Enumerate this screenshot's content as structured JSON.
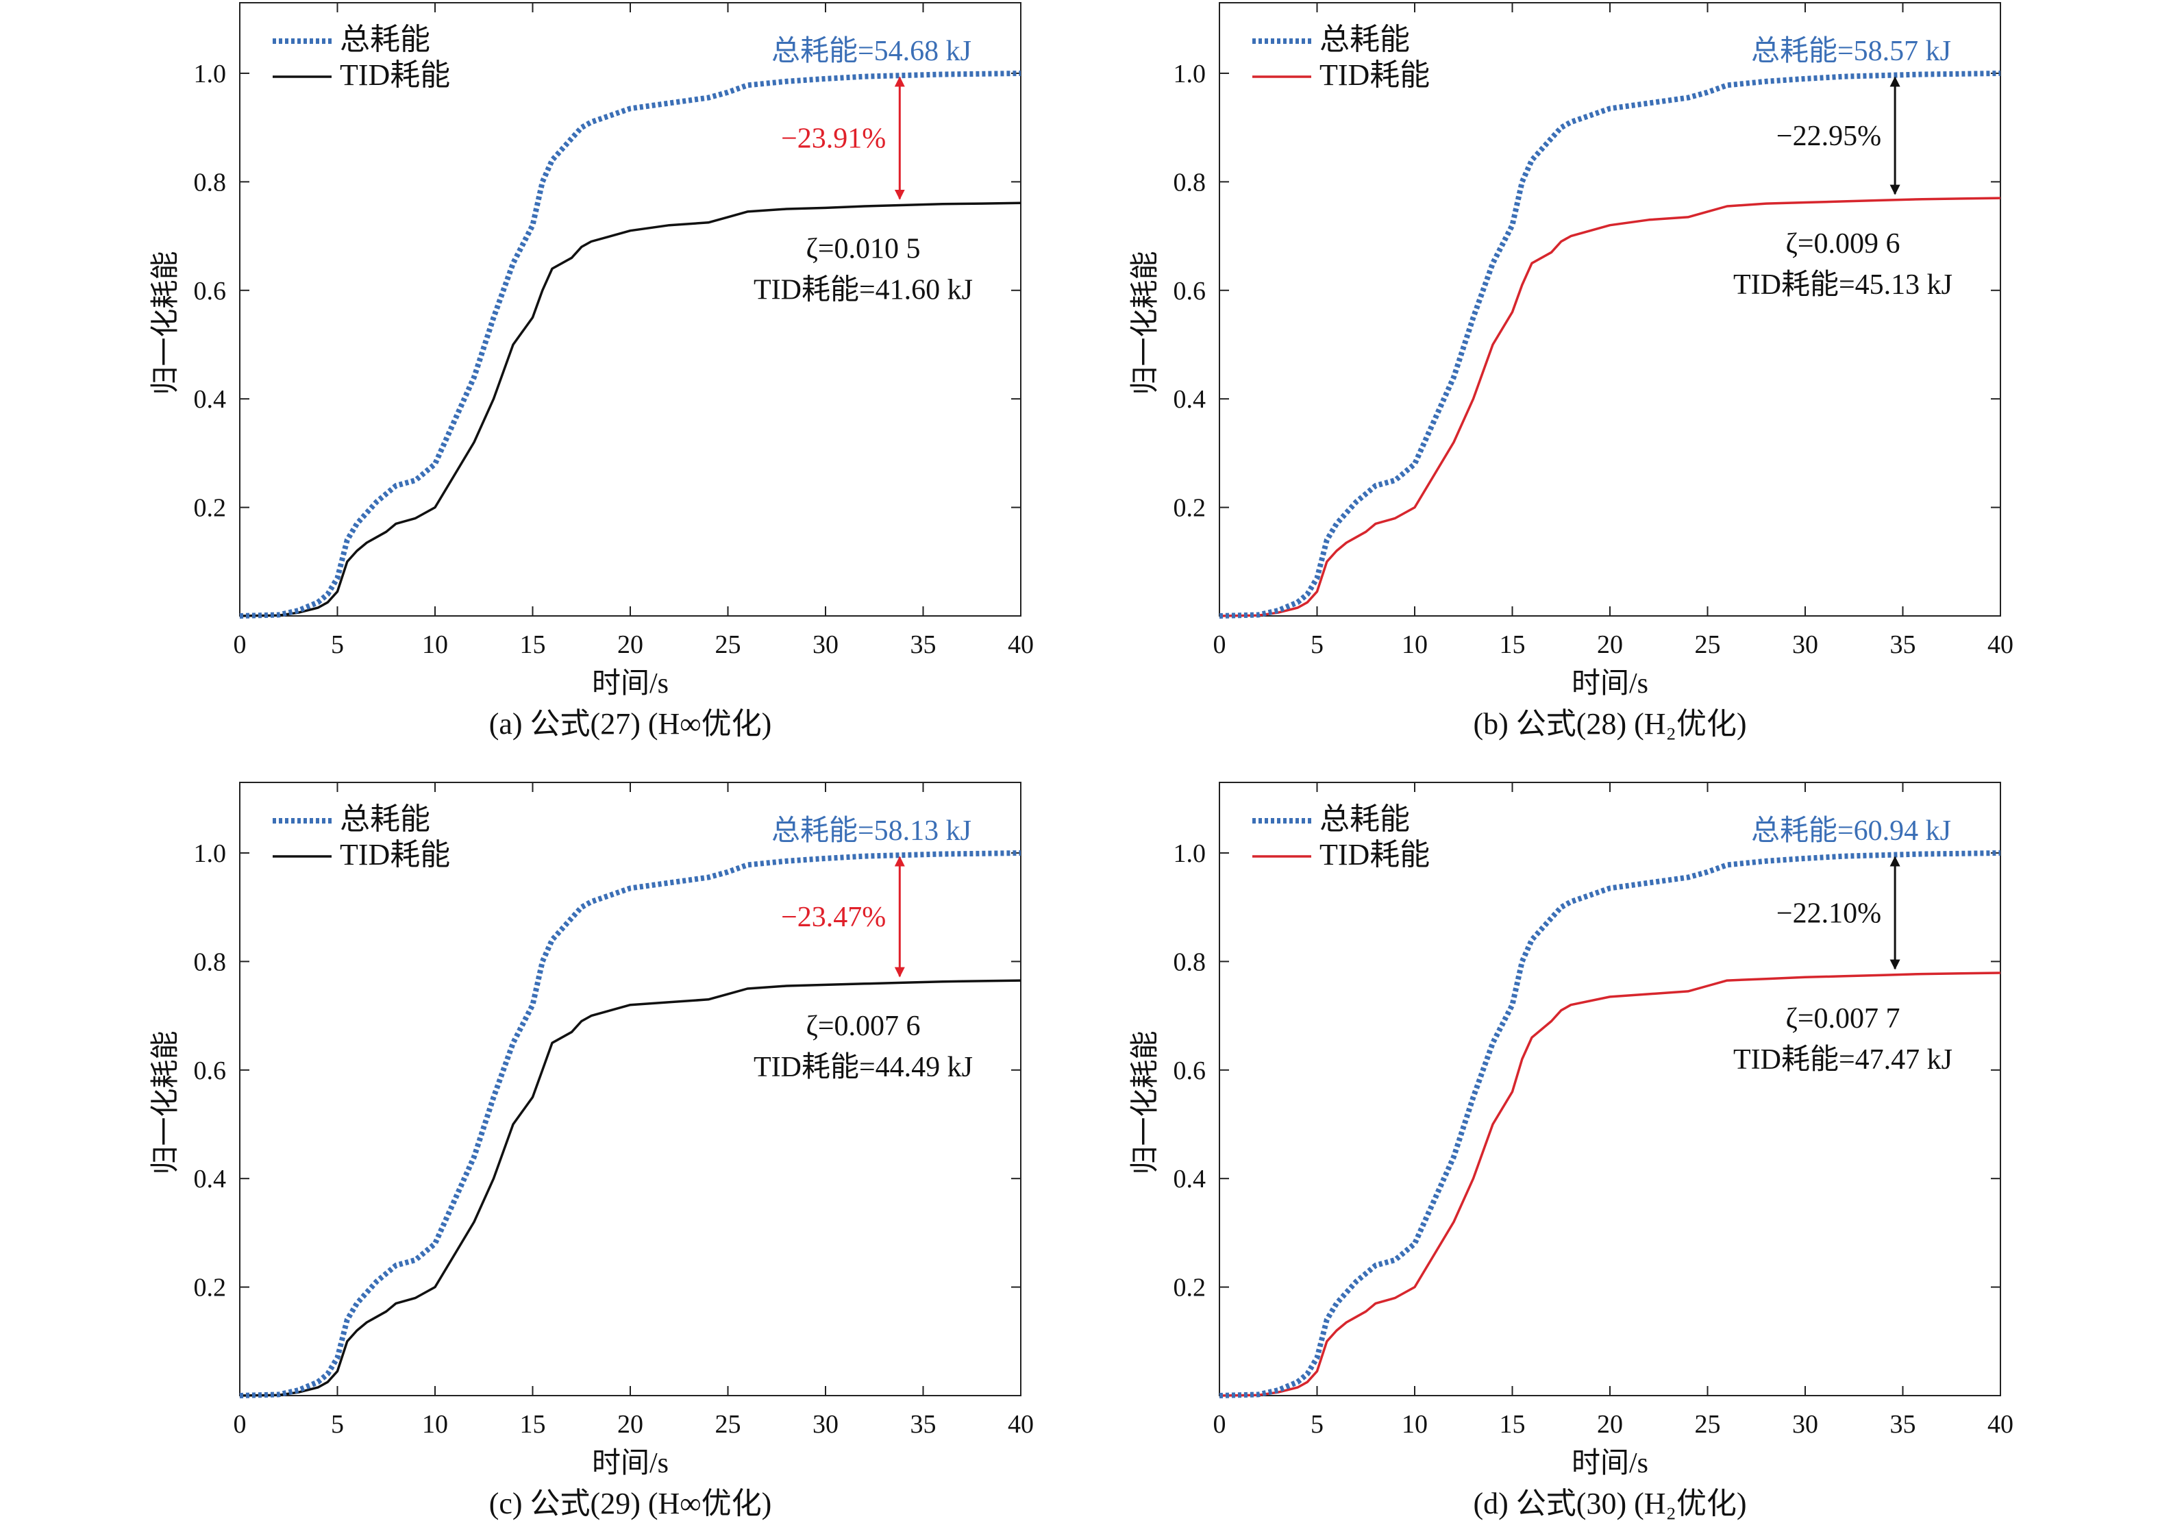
{
  "chart_data": [
    {
      "type": "line",
      "caption": "(a) 公式(27) (H∞优化)",
      "xlabel": "时间/s",
      "ylabel": "归一化耗能",
      "xlim": [
        0,
        40
      ],
      "ylim": [
        0,
        1.13
      ],
      "xticks": [
        0,
        5,
        10,
        15,
        20,
        25,
        30,
        35,
        40
      ],
      "yticks": [
        0.2,
        0.4,
        0.6,
        0.8,
        1.0
      ],
      "xtick_labels": [
        "0",
        "5",
        "10",
        "15",
        "20",
        "25",
        "30",
        "35",
        "40"
      ],
      "ytick_labels": [
        "0.2",
        "0.4",
        "0.6",
        "0.8",
        "1.0"
      ],
      "grid": false,
      "legend_position": "top-left",
      "colors": {
        "total": "#3b6fb6",
        "tid": "#111111",
        "reduction": "#e0202a"
      },
      "series": [
        {
          "name": "总耗能",
          "style": "dotted",
          "x": [
            0,
            2,
            3,
            4,
            4.5,
            5,
            5.5,
            6,
            6.5,
            7,
            7.5,
            8,
            9,
            10,
            11,
            12,
            13,
            14,
            15,
            15.5,
            16,
            17,
            17.5,
            18,
            20,
            22,
            24,
            25,
            26,
            28,
            30,
            32,
            34,
            36,
            38,
            40
          ],
          "y": [
            0,
            0.002,
            0.01,
            0.025,
            0.04,
            0.07,
            0.14,
            0.17,
            0.19,
            0.21,
            0.225,
            0.24,
            0.25,
            0.28,
            0.36,
            0.44,
            0.55,
            0.65,
            0.72,
            0.8,
            0.84,
            0.88,
            0.9,
            0.91,
            0.935,
            0.945,
            0.955,
            0.965,
            0.978,
            0.985,
            0.99,
            0.994,
            0.996,
            0.998,
            0.999,
            1.0
          ]
        },
        {
          "name": "TID耗能",
          "style": "solid",
          "x": [
            0,
            2,
            3,
            4,
            4.5,
            5,
            5.5,
            6,
            6.5,
            7,
            7.5,
            8,
            9,
            10,
            11,
            12,
            13,
            14,
            15,
            15.5,
            16,
            17,
            17.5,
            18,
            20,
            22,
            24,
            25,
            26,
            28,
            30,
            32,
            34,
            36,
            38,
            40
          ],
          "y": [
            0,
            0.001,
            0.006,
            0.015,
            0.025,
            0.045,
            0.1,
            0.12,
            0.135,
            0.145,
            0.155,
            0.17,
            0.18,
            0.2,
            0.26,
            0.32,
            0.4,
            0.5,
            0.55,
            0.6,
            0.64,
            0.66,
            0.68,
            0.69,
            0.71,
            0.72,
            0.725,
            0.735,
            0.745,
            0.75,
            0.752,
            0.755,
            0.757,
            0.759,
            0.76,
            0.761
          ]
        }
      ],
      "arrow_x": 33.8,
      "reduction_label": "−23.91%",
      "total_label": "总耗能=54.68 kJ",
      "zeta_label": "ζ=0.010 5",
      "tid_label": "TID耗能=41.60 kJ"
    },
    {
      "type": "line",
      "caption": "(b) 公式(28) (H₂优化)",
      "xlabel": "时间/s",
      "ylabel": "归一化耗能",
      "xlim": [
        0,
        40
      ],
      "ylim": [
        0,
        1.13
      ],
      "xticks": [
        0,
        5,
        10,
        15,
        20,
        25,
        30,
        35,
        40
      ],
      "yticks": [
        0.2,
        0.4,
        0.6,
        0.8,
        1.0
      ],
      "xtick_labels": [
        "0",
        "5",
        "10",
        "15",
        "20",
        "25",
        "30",
        "35",
        "40"
      ],
      "ytick_labels": [
        "0.2",
        "0.4",
        "0.6",
        "0.8",
        "1.0"
      ],
      "grid": false,
      "legend_position": "top-left",
      "colors": {
        "total": "#3b6fb6",
        "tid": "#d7262d",
        "reduction": "#111111"
      },
      "series": [
        {
          "name": "总耗能",
          "style": "dotted",
          "x": [
            0,
            2,
            3,
            4,
            4.5,
            5,
            5.5,
            6,
            6.5,
            7,
            7.5,
            8,
            9,
            10,
            11,
            12,
            13,
            14,
            15,
            15.5,
            16,
            17,
            17.5,
            18,
            20,
            22,
            24,
            25,
            26,
            28,
            30,
            32,
            34,
            36,
            38,
            40
          ],
          "y": [
            0,
            0.002,
            0.01,
            0.025,
            0.04,
            0.07,
            0.14,
            0.17,
            0.19,
            0.21,
            0.225,
            0.24,
            0.25,
            0.28,
            0.36,
            0.44,
            0.55,
            0.65,
            0.72,
            0.8,
            0.84,
            0.88,
            0.9,
            0.91,
            0.935,
            0.945,
            0.955,
            0.965,
            0.978,
            0.985,
            0.99,
            0.994,
            0.996,
            0.998,
            0.999,
            1.0
          ]
        },
        {
          "name": "TID耗能",
          "style": "solid",
          "x": [
            0,
            2,
            3,
            4,
            4.5,
            5,
            5.5,
            6,
            6.5,
            7,
            7.5,
            8,
            9,
            10,
            11,
            12,
            13,
            14,
            15,
            15.5,
            16,
            17,
            17.5,
            18,
            20,
            22,
            24,
            25,
            26,
            28,
            30,
            32,
            34,
            36,
            38,
            40
          ],
          "y": [
            0,
            0.001,
            0.006,
            0.015,
            0.025,
            0.045,
            0.1,
            0.12,
            0.135,
            0.145,
            0.155,
            0.17,
            0.18,
            0.2,
            0.26,
            0.32,
            0.4,
            0.5,
            0.56,
            0.61,
            0.65,
            0.67,
            0.69,
            0.7,
            0.72,
            0.73,
            0.735,
            0.745,
            0.755,
            0.76,
            0.762,
            0.764,
            0.766,
            0.768,
            0.769,
            0.77
          ]
        }
      ],
      "arrow_x": 34.6,
      "reduction_label": "−22.95%",
      "total_label": "总耗能=58.57 kJ",
      "zeta_label": "ζ=0.009 6",
      "tid_label": "TID耗能=45.13 kJ"
    },
    {
      "type": "line",
      "caption": "(c) 公式(29) (H∞优化)",
      "xlabel": "时间/s",
      "ylabel": "归一化耗能",
      "xlim": [
        0,
        40
      ],
      "ylim": [
        0,
        1.13
      ],
      "xticks": [
        0,
        5,
        10,
        15,
        20,
        25,
        30,
        35,
        40
      ],
      "yticks": [
        0.2,
        0.4,
        0.6,
        0.8,
        1.0
      ],
      "xtick_labels": [
        "0",
        "5",
        "10",
        "15",
        "20",
        "25",
        "30",
        "35",
        "40"
      ],
      "ytick_labels": [
        "0.2",
        "0.4",
        "0.6",
        "0.8",
        "1.0"
      ],
      "grid": false,
      "legend_position": "top-left",
      "colors": {
        "total": "#3b6fb6",
        "tid": "#111111",
        "reduction": "#e0202a"
      },
      "series": [
        {
          "name": "总耗能",
          "style": "dotted",
          "x": [
            0,
            2,
            3,
            4,
            4.5,
            5,
            5.5,
            6,
            6.5,
            7,
            7.5,
            8,
            9,
            10,
            11,
            12,
            13,
            14,
            15,
            15.5,
            16,
            17,
            17.5,
            18,
            20,
            22,
            24,
            25,
            26,
            28,
            30,
            32,
            34,
            36,
            38,
            40
          ],
          "y": [
            0,
            0.002,
            0.01,
            0.025,
            0.04,
            0.07,
            0.14,
            0.17,
            0.19,
            0.21,
            0.225,
            0.24,
            0.25,
            0.28,
            0.36,
            0.44,
            0.55,
            0.65,
            0.72,
            0.8,
            0.84,
            0.88,
            0.9,
            0.91,
            0.935,
            0.945,
            0.955,
            0.965,
            0.978,
            0.985,
            0.99,
            0.994,
            0.996,
            0.998,
            0.999,
            1.0
          ]
        },
        {
          "name": "TID耗能",
          "style": "solid",
          "x": [
            0,
            2,
            3,
            4,
            4.5,
            5,
            5.5,
            6,
            6.5,
            7,
            7.5,
            8,
            9,
            10,
            11,
            12,
            13,
            14,
            15,
            15.5,
            16,
            17,
            17.5,
            18,
            20,
            22,
            24,
            25,
            26,
            28,
            30,
            32,
            34,
            36,
            38,
            40
          ],
          "y": [
            0,
            0.001,
            0.006,
            0.015,
            0.025,
            0.045,
            0.1,
            0.12,
            0.135,
            0.145,
            0.155,
            0.17,
            0.18,
            0.2,
            0.26,
            0.32,
            0.4,
            0.5,
            0.55,
            0.6,
            0.65,
            0.67,
            0.69,
            0.7,
            0.72,
            0.725,
            0.73,
            0.74,
            0.75,
            0.755,
            0.757,
            0.759,
            0.761,
            0.763,
            0.764,
            0.765
          ]
        }
      ],
      "arrow_x": 33.8,
      "reduction_label": "−23.47%",
      "total_label": "总耗能=58.13 kJ",
      "zeta_label": "ζ=0.007 6",
      "tid_label": "TID耗能=44.49 kJ"
    },
    {
      "type": "line",
      "caption": "(d) 公式(30) (H₂优化)",
      "xlabel": "时间/s",
      "ylabel": "归一化耗能",
      "xlim": [
        0,
        40
      ],
      "ylim": [
        0,
        1.13
      ],
      "xticks": [
        0,
        5,
        10,
        15,
        20,
        25,
        30,
        35,
        40
      ],
      "yticks": [
        0.2,
        0.4,
        0.6,
        0.8,
        1.0
      ],
      "xtick_labels": [
        "0",
        "5",
        "10",
        "15",
        "20",
        "25",
        "30",
        "35",
        "40"
      ],
      "ytick_labels": [
        "0.2",
        "0.4",
        "0.6",
        "0.8",
        "1.0"
      ],
      "grid": false,
      "legend_position": "top-left",
      "colors": {
        "total": "#3b6fb6",
        "tid": "#d7262d",
        "reduction": "#111111"
      },
      "series": [
        {
          "name": "总耗能",
          "style": "dotted",
          "x": [
            0,
            2,
            3,
            4,
            4.5,
            5,
            5.5,
            6,
            6.5,
            7,
            7.5,
            8,
            9,
            10,
            11,
            12,
            13,
            14,
            15,
            15.5,
            16,
            17,
            17.5,
            18,
            20,
            22,
            24,
            25,
            26,
            28,
            30,
            32,
            34,
            36,
            38,
            40
          ],
          "y": [
            0,
            0.002,
            0.01,
            0.025,
            0.04,
            0.07,
            0.14,
            0.17,
            0.19,
            0.21,
            0.225,
            0.24,
            0.25,
            0.28,
            0.36,
            0.44,
            0.55,
            0.65,
            0.72,
            0.8,
            0.84,
            0.88,
            0.9,
            0.91,
            0.935,
            0.945,
            0.955,
            0.965,
            0.978,
            0.985,
            0.99,
            0.994,
            0.996,
            0.998,
            0.999,
            1.0
          ]
        },
        {
          "name": "TID耗能",
          "style": "solid",
          "x": [
            0,
            2,
            3,
            4,
            4.5,
            5,
            5.5,
            6,
            6.5,
            7,
            7.5,
            8,
            9,
            10,
            11,
            12,
            13,
            14,
            15,
            15.5,
            16,
            17,
            17.5,
            18,
            20,
            22,
            24,
            25,
            26,
            28,
            30,
            32,
            34,
            36,
            38,
            40
          ],
          "y": [
            0,
            0.001,
            0.006,
            0.015,
            0.025,
            0.045,
            0.1,
            0.12,
            0.135,
            0.145,
            0.155,
            0.17,
            0.18,
            0.2,
            0.26,
            0.32,
            0.4,
            0.5,
            0.56,
            0.62,
            0.66,
            0.69,
            0.71,
            0.72,
            0.735,
            0.74,
            0.745,
            0.755,
            0.765,
            0.768,
            0.771,
            0.773,
            0.775,
            0.777,
            0.778,
            0.779
          ]
        }
      ],
      "arrow_x": 34.6,
      "reduction_label": "−22.10%",
      "total_label": "总耗能=60.94 kJ",
      "zeta_label": "ζ=0.007 7",
      "tid_label": "TID耗能=47.47 kJ"
    }
  ]
}
